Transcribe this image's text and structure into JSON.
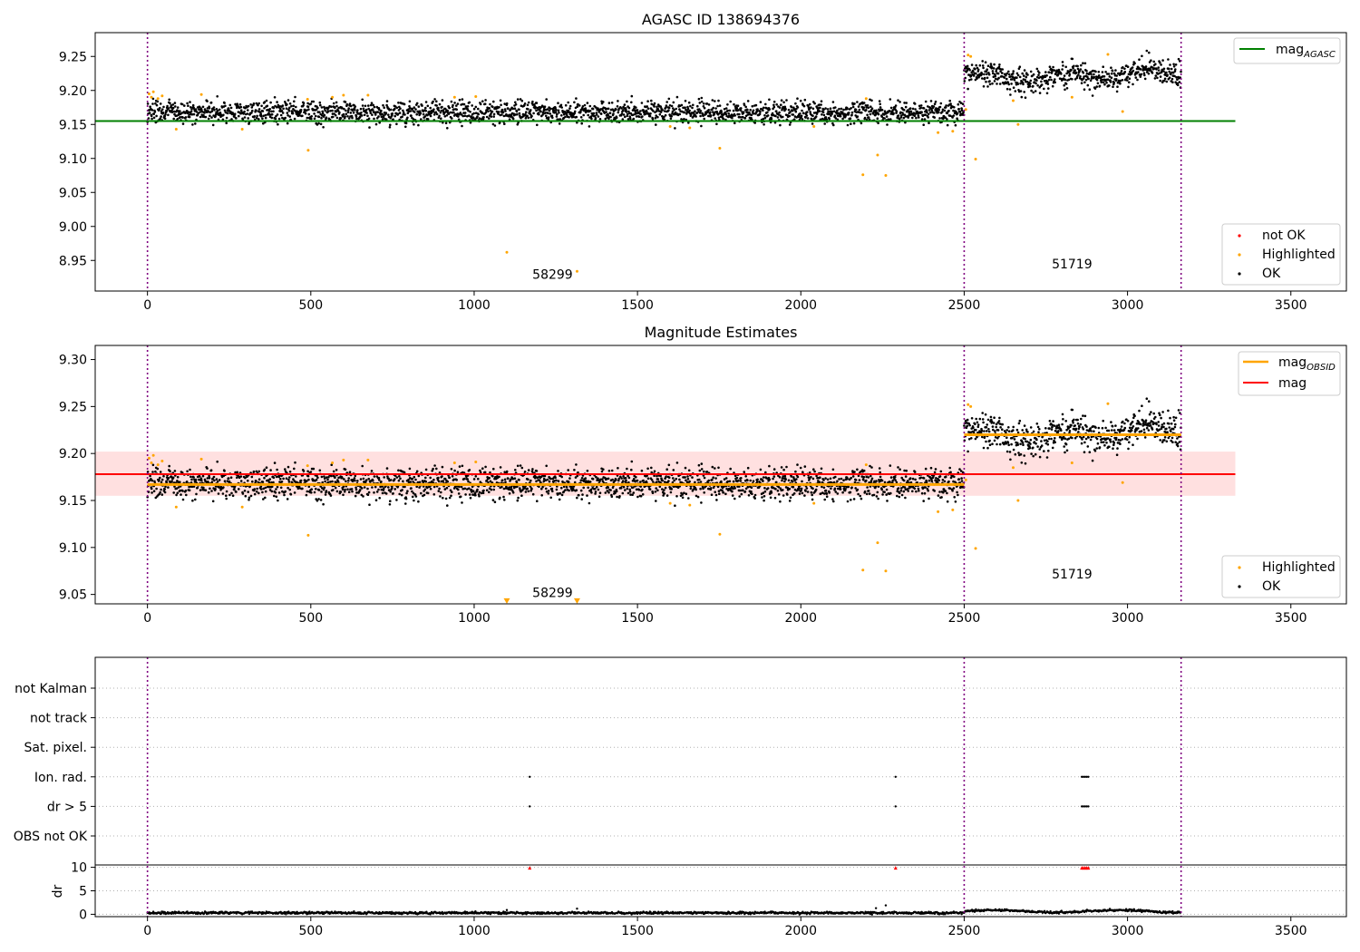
{
  "chart_data": [
    {
      "type": "scatter",
      "title": "AGASC ID 138694376",
      "xlabel": "",
      "ylabel": "",
      "xlim": [
        -160,
        3670
      ],
      "ylim": [
        8.905,
        9.285
      ],
      "xticks": [
        0,
        500,
        1000,
        1500,
        2000,
        2500,
        3000,
        3500
      ],
      "xtick_labels": [
        "0",
        "500",
        "1000",
        "1500",
        "2000",
        "2500",
        "3000",
        "3500"
      ],
      "yticks": [
        8.95,
        9.0,
        9.05,
        9.1,
        9.15,
        9.2,
        9.25
      ],
      "ytick_labels": [
        "8.95",
        "9.00",
        "9.05",
        "9.10",
        "9.15",
        "9.20",
        "9.25"
      ],
      "vlines_x": [
        0,
        2500,
        3164
      ],
      "colors": {
        "ok": "#000000",
        "highlighted": "#ffa500",
        "not_ok": "#ff0000",
        "mag_agasc": "#008000",
        "vlines": "#800080"
      },
      "lines": [
        {
          "name": "mag_AGASC",
          "y": 9.155,
          "x_range": [
            -160,
            3330
          ],
          "color": "#008000"
        }
      ],
      "segments": [
        {
          "x_range": [
            0,
            2500
          ],
          "mean": 9.168,
          "std": 0.008
        },
        {
          "x_range": [
            2500,
            3164
          ],
          "mean": 9.222,
          "std": 0.009
        }
      ],
      "highlighted_points": [
        [
          5,
          9.195
        ],
        [
          12,
          9.19
        ],
        [
          18,
          9.198
        ],
        [
          32,
          9.188
        ],
        [
          45,
          9.192
        ],
        [
          88,
          9.143
        ],
        [
          165,
          9.194
        ],
        [
          290,
          9.143
        ],
        [
          490,
          9.187
        ],
        [
          492,
          9.112
        ],
        [
          566,
          9.19
        ],
        [
          600,
          9.193
        ],
        [
          675,
          9.193
        ],
        [
          940,
          9.19
        ],
        [
          1005,
          9.191
        ],
        [
          1100,
          8.962
        ],
        [
          1315,
          8.934
        ],
        [
          1600,
          9.147
        ],
        [
          1660,
          9.145
        ],
        [
          1752,
          9.115
        ],
        [
          2040,
          9.147
        ],
        [
          2190,
          9.076
        ],
        [
          2200,
          9.188
        ],
        [
          2235,
          9.105
        ],
        [
          2260,
          9.075
        ],
        [
          2420,
          9.138
        ],
        [
          2465,
          9.14
        ],
        [
          2505,
          9.172
        ],
        [
          2512,
          9.252
        ],
        [
          2520,
          9.25
        ],
        [
          2535,
          9.099
        ],
        [
          2650,
          9.185
        ],
        [
          2665,
          9.15
        ],
        [
          2830,
          9.19
        ],
        [
          2940,
          9.253
        ],
        [
          2985,
          9.169
        ]
      ],
      "legend": [
        {
          "label": "mag",
          "subscript": "AGASC",
          "type": "line",
          "color": "#008000"
        },
        {
          "label": "not OK",
          "type": "marker",
          "color": "#ff0000"
        },
        {
          "label": "Highlighted",
          "type": "marker",
          "color": "#ffa500"
        },
        {
          "label": "OK",
          "type": "marker",
          "color": "#000000"
        }
      ],
      "annotations": [
        {
          "text": "58299",
          "x": 1240,
          "y": 8.93
        },
        {
          "text": "51719",
          "x": 2830,
          "y": 8.945
        }
      ]
    },
    {
      "type": "scatter",
      "title": "Magnitude Estimates",
      "xlabel": "",
      "ylabel": "",
      "xlim": [
        -160,
        3670
      ],
      "ylim": [
        9.04,
        9.315
      ],
      "xticks": [
        0,
        500,
        1000,
        1500,
        2000,
        2500,
        3000,
        3500
      ],
      "xtick_labels": [
        "0",
        "500",
        "1000",
        "1500",
        "2000",
        "2500",
        "3000",
        "3500"
      ],
      "yticks": [
        9.05,
        9.1,
        9.15,
        9.2,
        9.25,
        9.3
      ],
      "ytick_labels": [
        "9.05",
        "9.10",
        "9.15",
        "9.20",
        "9.25",
        "9.30"
      ],
      "vlines_x": [
        0,
        2500,
        3164
      ],
      "colors": {
        "ok": "#000000",
        "highlighted": "#ffa500",
        "mag_obsid": "#ffa500",
        "mag": "#ff0000",
        "band": "#ffcccc"
      },
      "mag_line": {
        "y": 9.178,
        "x_range": [
          -160,
          3330
        ]
      },
      "mag_band": {
        "y_range": [
          9.155,
          9.202
        ],
        "x_range": [
          -160,
          3330
        ]
      },
      "mag_obsid": [
        {
          "x_range": [
            0,
            2500
          ],
          "y": 9.167
        },
        {
          "x_range": [
            2500,
            3164
          ],
          "y": 9.22
        }
      ],
      "segments": [
        {
          "x_range": [
            0,
            2500
          ],
          "mean": 9.168,
          "std": 0.008
        },
        {
          "x_range": [
            2500,
            3164
          ],
          "mean": 9.222,
          "std": 0.009
        }
      ],
      "highlighted_points": [
        [
          5,
          9.195
        ],
        [
          12,
          9.19
        ],
        [
          18,
          9.198
        ],
        [
          32,
          9.188
        ],
        [
          45,
          9.192
        ],
        [
          88,
          9.143
        ],
        [
          165,
          9.194
        ],
        [
          290,
          9.143
        ],
        [
          490,
          9.187
        ],
        [
          492,
          9.113
        ],
        [
          566,
          9.19
        ],
        [
          600,
          9.193
        ],
        [
          675,
          9.193
        ],
        [
          940,
          9.19
        ],
        [
          1005,
          9.191
        ],
        [
          1600,
          9.147
        ],
        [
          1660,
          9.145
        ],
        [
          1752,
          9.114
        ],
        [
          2040,
          9.147
        ],
        [
          2190,
          9.076
        ],
        [
          2200,
          9.188
        ],
        [
          2235,
          9.105
        ],
        [
          2260,
          9.075
        ],
        [
          2420,
          9.138
        ],
        [
          2465,
          9.14
        ],
        [
          2505,
          9.172
        ],
        [
          2512,
          9.252
        ],
        [
          2520,
          9.25
        ],
        [
          2535,
          9.099
        ],
        [
          2650,
          9.185
        ],
        [
          2665,
          9.15
        ],
        [
          2830,
          9.19
        ],
        [
          2940,
          9.253
        ],
        [
          2985,
          9.169
        ]
      ],
      "offscale_markers": [
        [
          1100,
          9.043
        ],
        [
          1315,
          9.043
        ]
      ],
      "legend_top": [
        {
          "label": "mag",
          "subscript": "OBSID",
          "type": "line",
          "color": "#ffa500"
        },
        {
          "label": "mag",
          "type": "line",
          "color": "#ff0000"
        }
      ],
      "legend_bottom": [
        {
          "label": "Highlighted",
          "type": "marker",
          "color": "#ffa500"
        },
        {
          "label": "OK",
          "type": "marker",
          "color": "#000000"
        }
      ],
      "annotations": [
        {
          "text": "58299",
          "x": 1240,
          "y": 9.052
        },
        {
          "text": "51719",
          "x": 2830,
          "y": 9.072
        }
      ]
    },
    {
      "type": "scatter",
      "title": "",
      "xlabel": "",
      "xlim": [
        -160,
        3670
      ],
      "xticks": [
        0,
        500,
        1000,
        1500,
        2000,
        2500,
        3000,
        3500
      ],
      "xtick_labels": [
        "0",
        "500",
        "1000",
        "1500",
        "2000",
        "2500",
        "3000",
        "3500"
      ],
      "vlines_x": [
        0,
        2500,
        3164
      ],
      "flags": {
        "categories": [
          "not Kalman",
          "not track",
          "Sat. pixel.",
          "Ion. rad.",
          "dr > 5",
          "OBS not OK"
        ],
        "points": [
          {
            "category": "Ion. rad.",
            "x": [
              1170,
              2290,
              2860,
              2865,
              2870,
              2875,
              2880
            ]
          },
          {
            "category": "dr > 5",
            "x": [
              1170,
              2290,
              2860,
              2865,
              2870,
              2875,
              2880
            ]
          }
        ]
      },
      "dr": {
        "ylabel": "dr",
        "ylim": [
          -0.5,
          10.5
        ],
        "yticks": [
          0,
          5,
          10
        ],
        "ytick_labels": [
          "0",
          "5",
          "10"
        ],
        "baseline_mean": 0.3,
        "clipped_points_x": [
          1170,
          2290,
          2860,
          2865,
          2870,
          2875,
          2880
        ],
        "clipped_color": "#ff0000",
        "spikes": [
          [
            1315,
            1.2
          ],
          [
            2230,
            1.3
          ],
          [
            2260,
            1.9
          ],
          [
            1100,
            0.9
          ]
        ]
      }
    }
  ]
}
